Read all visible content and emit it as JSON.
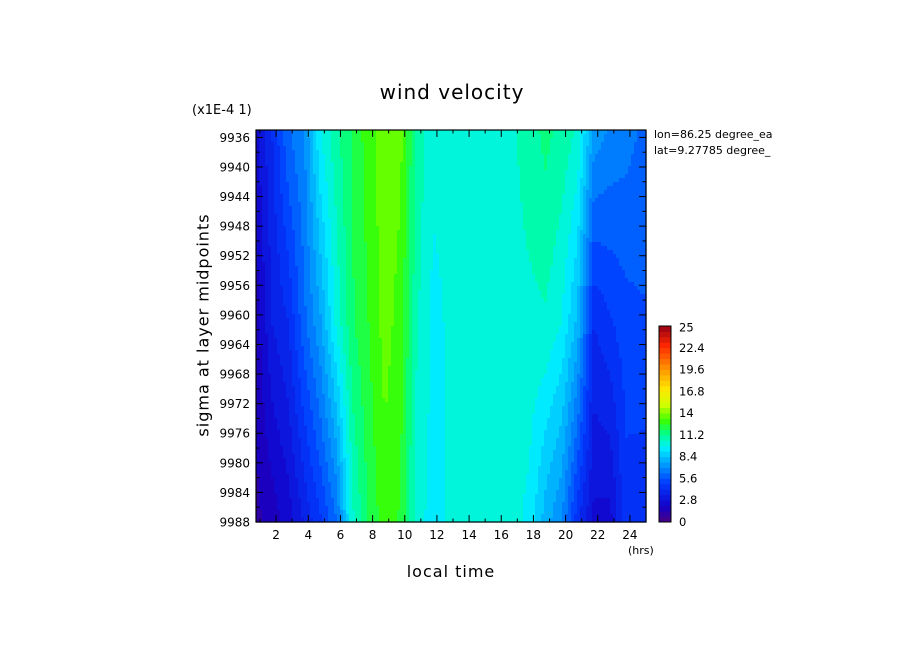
{
  "chart_data": {
    "type": "heatmap",
    "title": "wind velocity",
    "scale_note": "(x1E-4 1)",
    "xlabel": "local time",
    "xunit": "(hrs)",
    "ylabel": "sigma at layer midpoints",
    "annotations": [
      "lon=86.25 degree_ea",
      "lat=9.27785 degree_"
    ],
    "xlim": [
      0.75,
      25.0
    ],
    "ylim": [
      9988,
      9935
    ],
    "x_ticks": [
      2,
      4,
      6,
      8,
      10,
      12,
      14,
      16,
      18,
      20,
      22,
      24
    ],
    "y_ticks": [
      9936,
      9940,
      9944,
      9948,
      9952,
      9956,
      9960,
      9964,
      9968,
      9972,
      9976,
      9980,
      9984,
      9988
    ],
    "x": [
      0.75,
      1.75,
      2.75,
      3.75,
      4.75,
      5.75,
      6.75,
      7.75,
      8.75,
      9.75,
      10.75,
      11.75,
      12.75,
      13.75,
      14.75,
      15.75,
      16.75,
      17.75,
      18.75,
      19.75,
      20.75,
      21.75,
      22.75,
      23.75,
      24.75
    ],
    "y": [
      9935,
      9961,
      9988
    ],
    "z": [
      [
        2.6,
        4.2,
        6.2,
        7.0,
        9.8,
        11.0,
        12.0,
        13.0,
        13.8,
        13.5,
        11.0,
        10.0,
        10.0,
        10.0,
        10.0,
        10.0,
        10.4,
        10.9,
        11.4,
        11.0,
        10.4,
        7.5,
        6.9,
        6.6,
        6.2
      ],
      [
        1.7,
        3.5,
        4.2,
        6.1,
        7.6,
        10.0,
        11.8,
        12.6,
        13.6,
        13.0,
        10.6,
        9.6,
        9.9,
        10.0,
        10.0,
        10.0,
        10.2,
        10.3,
        10.4,
        9.8,
        8.2,
        4.2,
        4.8,
        5.3,
        5.5
      ],
      [
        1.2,
        1.7,
        2.4,
        3.6,
        4.8,
        6.2,
        10.3,
        12.0,
        13.0,
        12.5,
        10.0,
        9.6,
        9.9,
        10.0,
        10.0,
        10.0,
        10.0,
        9.6,
        8.0,
        7.0,
        4.4,
        2.6,
        2.5,
        4.6,
        4.4
      ]
    ],
    "colorbar": {
      "min": 0,
      "max": 25,
      "step": 0.7,
      "labels": [
        "25",
        "22.4",
        "19.6",
        "16.8",
        "14",
        "11.2",
        "8.4",
        "5.6",
        "2.8",
        "0"
      ]
    },
    "grid": false,
    "colormap": "rainbow (purple-blue-cyan-green-yellow-orange-red)"
  }
}
